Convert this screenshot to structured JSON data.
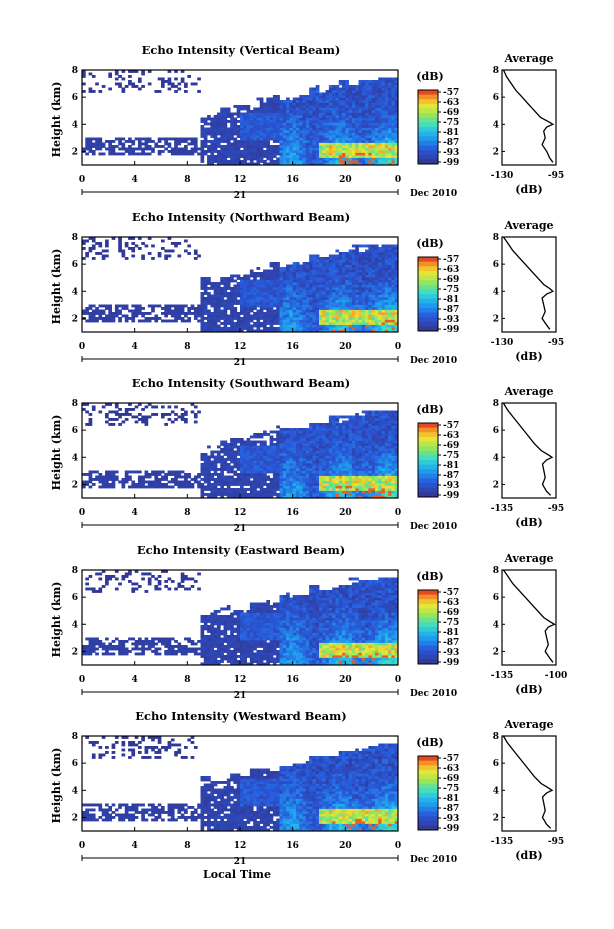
{
  "figure": {
    "x_axis_title": "Local Time",
    "date_suffix": "Dec 2010",
    "date_day": "21",
    "colorbar_unit": "(dB)",
    "average_title": "Average",
    "average_unit": "(dB)"
  },
  "chart_data": [
    {
      "type": "heatmap",
      "title": "Echo Intensity (Vertical Beam)",
      "ylabel": "Height (km)",
      "xlabel": "Local Time",
      "x_ticks": [
        "0",
        "4",
        "8",
        "12",
        "16",
        "20",
        "0"
      ],
      "y_ticks": [
        "2",
        "4",
        "6",
        "8"
      ],
      "xlim": [
        0,
        24
      ],
      "ylim": [
        1,
        8
      ],
      "colorbar": {
        "label": "(dB)",
        "ticks": [
          "-57",
          "-63",
          "-69",
          "-75",
          "-81",
          "-87",
          "-93",
          "-99"
        ]
      },
      "profile": {
        "title": "Average",
        "xlabel": "(dB)",
        "x_ticks": [
          "-130",
          "-95"
        ],
        "y_ticks": [
          "2",
          "4",
          "6",
          "8"
        ],
        "heights": [
          8,
          7.5,
          7,
          6.5,
          6,
          5.5,
          5,
          4.5,
          4.2,
          4,
          3.8,
          3.5,
          3,
          2.5,
          2,
          1.5,
          1.2
        ],
        "values": [
          -129,
          -127,
          -124,
          -121,
          -117,
          -113,
          -109,
          -105,
          -100,
          -97,
          -101,
          -103,
          -102,
          -104,
          -101,
          -99,
          -97
        ]
      }
    },
    {
      "type": "heatmap",
      "title": "Echo Intensity (Northward Beam)",
      "ylabel": "Height (km)",
      "xlabel": "Local Time",
      "x_ticks": [
        "0",
        "4",
        "8",
        "12",
        "16",
        "20",
        "0"
      ],
      "y_ticks": [
        "2",
        "4",
        "6",
        "8"
      ],
      "xlim": [
        0,
        24
      ],
      "ylim": [
        1,
        8
      ],
      "colorbar": {
        "label": "(dB)",
        "ticks": [
          "-57",
          "-63",
          "-69",
          "-75",
          "-81",
          "-87",
          "-93",
          "-99"
        ]
      },
      "profile": {
        "title": "Average",
        "xlabel": "(dB)",
        "x_ticks": [
          "-130",
          "-95"
        ],
        "y_ticks": [
          "2",
          "4",
          "6",
          "8"
        ],
        "heights": [
          8,
          7.5,
          7,
          6.5,
          6,
          5.5,
          5,
          4.5,
          4.2,
          4,
          3.8,
          3.5,
          3,
          2.5,
          2,
          1.5,
          1.2
        ],
        "values": [
          -129,
          -126,
          -123,
          -119,
          -115,
          -111,
          -107,
          -103,
          -99,
          -97,
          -101,
          -104,
          -103,
          -102,
          -104,
          -101,
          -99
        ]
      }
    },
    {
      "type": "heatmap",
      "title": "Echo Intensity (Southward Beam)",
      "ylabel": "Height (km)",
      "xlabel": "Local Time",
      "x_ticks": [
        "0",
        "4",
        "8",
        "12",
        "16",
        "20",
        "0"
      ],
      "y_ticks": [
        "2",
        "4",
        "6",
        "8"
      ],
      "xlim": [
        0,
        24
      ],
      "ylim": [
        1,
        8
      ],
      "colorbar": {
        "label": "(dB)",
        "ticks": [
          "-57",
          "-63",
          "-69",
          "-75",
          "-81",
          "-87",
          "-93",
          "-99"
        ]
      },
      "profile": {
        "title": "Average",
        "xlabel": "(dB)",
        "x_ticks": [
          "-135",
          "-95"
        ],
        "y_ticks": [
          "2",
          "4",
          "6",
          "8"
        ],
        "heights": [
          8,
          7.5,
          7,
          6.5,
          6,
          5.5,
          5,
          4.5,
          4.2,
          4,
          3.8,
          3.5,
          3,
          2.5,
          2,
          1.5,
          1.2
        ],
        "values": [
          -134,
          -131,
          -127,
          -123,
          -119,
          -115,
          -111,
          -106,
          -101,
          -98,
          -102,
          -105,
          -104,
          -103,
          -105,
          -102,
          -99
        ]
      }
    },
    {
      "type": "heatmap",
      "title": "Echo Intensity (Eastward Beam)",
      "ylabel": "Height (km)",
      "xlabel": "Local Time",
      "x_ticks": [
        "0",
        "4",
        "8",
        "12",
        "16",
        "20",
        "0"
      ],
      "y_ticks": [
        "2",
        "4",
        "6",
        "8"
      ],
      "xlim": [
        0,
        24
      ],
      "ylim": [
        1,
        8
      ],
      "colorbar": {
        "label": "(dB)",
        "ticks": [
          "-57",
          "-63",
          "-69",
          "-75",
          "-81",
          "-87",
          "-93",
          "-99"
        ]
      },
      "profile": {
        "title": "Average",
        "xlabel": "(dB)",
        "x_ticks": [
          "-135",
          "-100"
        ],
        "y_ticks": [
          "2",
          "4",
          "6",
          "8"
        ],
        "heights": [
          8,
          7.5,
          7,
          6.5,
          6,
          5.5,
          5,
          4.5,
          4.2,
          4,
          3.8,
          3.5,
          3,
          2.5,
          2,
          1.5,
          1.2
        ],
        "values": [
          -134,
          -131,
          -128,
          -124,
          -120,
          -116,
          -112,
          -108,
          -104,
          -101,
          -105,
          -107,
          -106,
          -105,
          -107,
          -104,
          -102
        ]
      }
    },
    {
      "type": "heatmap",
      "title": "Echo Intensity (Westward Beam)",
      "ylabel": "Height (km)",
      "xlabel": "Local Time",
      "x_ticks": [
        "0",
        "4",
        "8",
        "12",
        "16",
        "20",
        "0"
      ],
      "y_ticks": [
        "2",
        "4",
        "6",
        "8"
      ],
      "xlim": [
        0,
        24
      ],
      "ylim": [
        1,
        8
      ],
      "colorbar": {
        "label": "(dB)",
        "ticks": [
          "-57",
          "-63",
          "-69",
          "-75",
          "-81",
          "-87",
          "-93",
          "-99"
        ]
      },
      "profile": {
        "title": "Average",
        "xlabel": "(dB)",
        "x_ticks": [
          "-135",
          "-95"
        ],
        "y_ticks": [
          "2",
          "4",
          "6",
          "8"
        ],
        "heights": [
          8,
          7.5,
          7,
          6.5,
          6,
          5.5,
          5,
          4.5,
          4.2,
          4,
          3.8,
          3.5,
          3,
          2.5,
          2,
          1.5,
          1.2
        ],
        "values": [
          -134,
          -131,
          -127,
          -123,
          -119,
          -115,
          -111,
          -106,
          -101,
          -98,
          -102,
          -105,
          -104,
          -103,
          -105,
          -102,
          -99
        ]
      }
    }
  ]
}
